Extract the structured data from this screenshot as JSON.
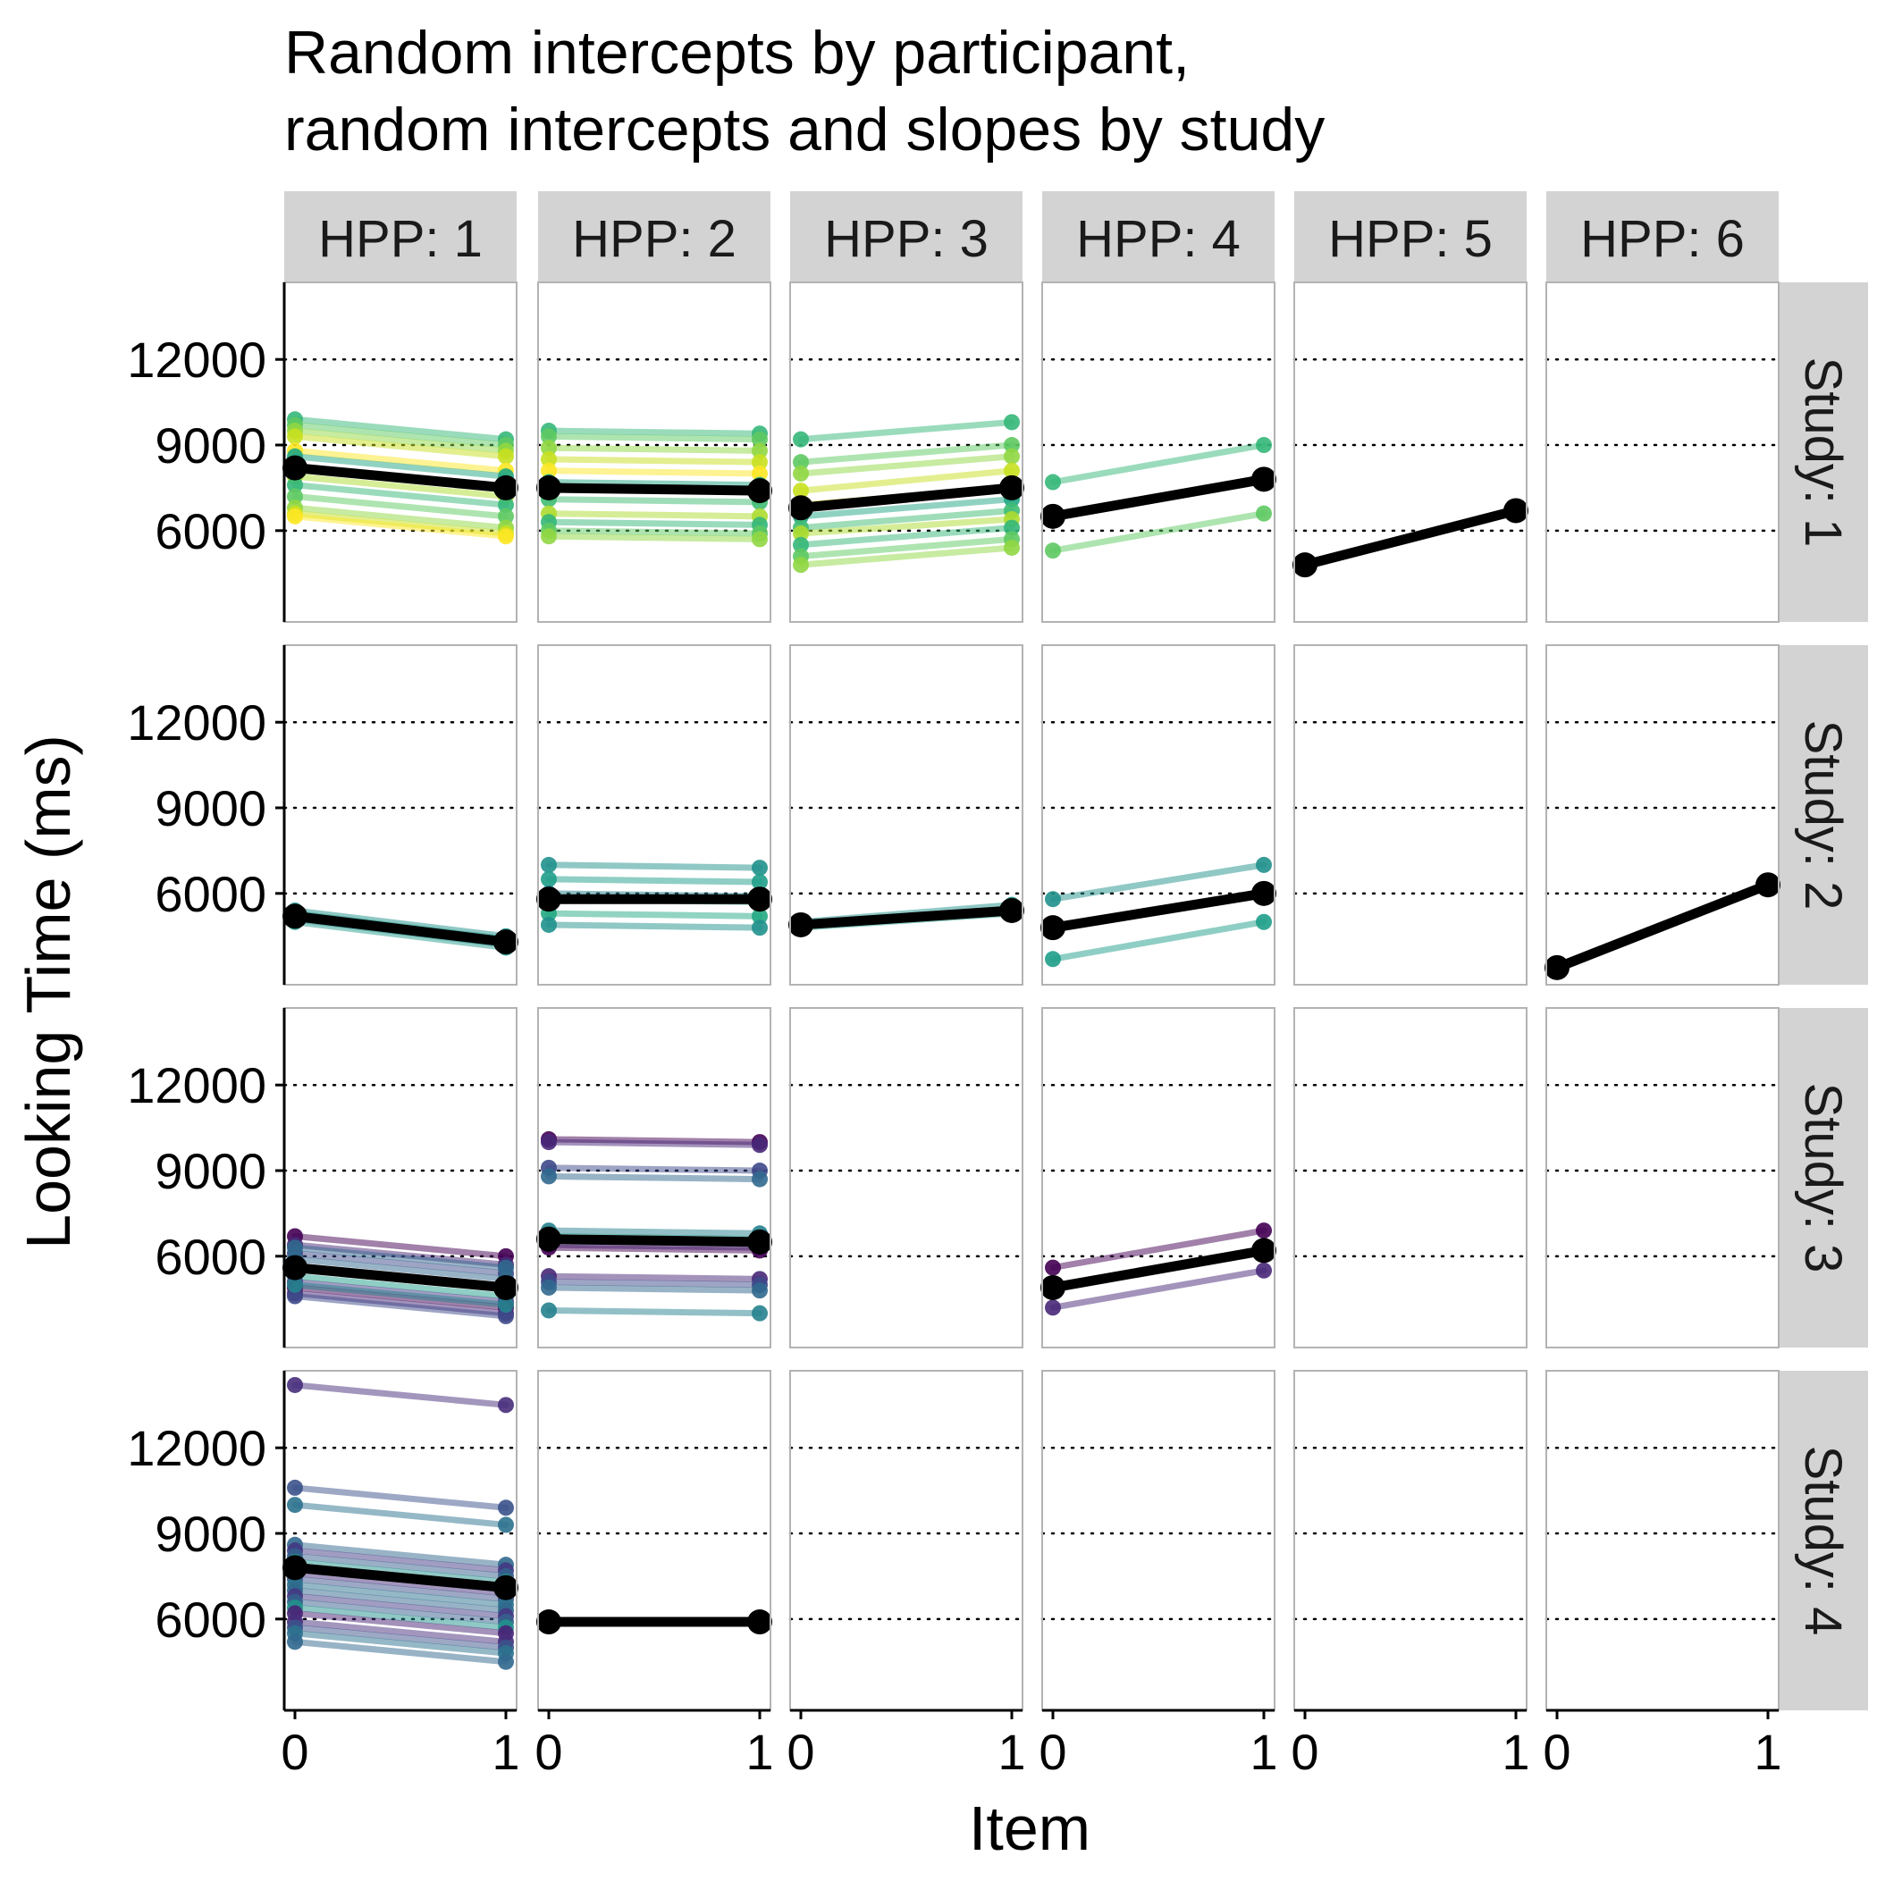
{
  "chart_data": {
    "type": "line",
    "title": "Random intercepts by participant,\nrandom intercepts and slopes by study",
    "title_lines": [
      "Random intercepts by participant,",
      "random intercepts and slopes by study"
    ],
    "xlabel": "Item",
    "ylabel": "Looking Time (ms)",
    "xlim": [
      0,
      1
    ],
    "ylim": [
      2800,
      14700
    ],
    "x_ticks": [
      0,
      1
    ],
    "x_tick_labels": [
      "0",
      "1"
    ],
    "y_ticks": [
      6000,
      9000,
      12000
    ],
    "y_tick_labels": [
      "6000",
      "9000",
      "12000"
    ],
    "gridlines": "dotted horizontal at y ticks",
    "legend": "none",
    "col_facets": [
      "HPP: 1",
      "HPP: 2",
      "HPP: 3",
      "HPP: 4",
      "HPP: 5",
      "HPP: 6"
    ],
    "row_facets": [
      "Study: 1",
      "Study: 2",
      "Study: 3",
      "Study: 4"
    ],
    "colors": {
      "study1": [
        "#35b779",
        "#5ec962",
        "#90d743",
        "#c8e020",
        "#fde725",
        "#21a685",
        "#3fbc73",
        "#addc30"
      ],
      "study2": [
        "#21918c",
        "#1f9e89",
        "#26828e",
        "#2a9d8f",
        "#23a983"
      ],
      "study3": [
        "#440154",
        "#482878",
        "#3e4989",
        "#31688e",
        "#26828e",
        "#1f9e89",
        "#443983"
      ],
      "study4": [
        "#472d7b",
        "#3b528b",
        "#2c728e",
        "#31688e",
        "#443983",
        "#35608d",
        "#21918c",
        "#482475"
      ],
      "fixed_effect": "#000000",
      "strip_fill": "#d3d3d3",
      "panel_border": "#b3b3b3"
    },
    "panels": [
      {
        "row": 0,
        "col": 0,
        "fixed": [
          8200,
          7500
        ],
        "participants": [
          [
            9900,
            9200
          ],
          [
            9700,
            9000
          ],
          [
            9500,
            8800
          ],
          [
            9300,
            8600
          ],
          [
            8800,
            8100
          ],
          [
            8600,
            7900
          ],
          [
            8200,
            7500
          ],
          [
            7900,
            7200
          ],
          [
            7600,
            6900
          ],
          [
            7200,
            6500
          ],
          [
            6800,
            6100
          ],
          [
            6600,
            5900
          ],
          [
            6500,
            5800
          ]
        ]
      },
      {
        "row": 0,
        "col": 1,
        "fixed": [
          7500,
          7400
        ],
        "participants": [
          [
            9500,
            9400
          ],
          [
            9300,
            9200
          ],
          [
            8900,
            8800
          ],
          [
            8500,
            8400
          ],
          [
            8100,
            8000
          ],
          [
            7700,
            7600
          ],
          [
            7100,
            7000
          ],
          [
            6600,
            6500
          ],
          [
            6300,
            6200
          ],
          [
            6000,
            5900
          ],
          [
            5800,
            5700
          ]
        ]
      },
      {
        "row": 0,
        "col": 2,
        "fixed": [
          6800,
          7500
        ],
        "participants": [
          [
            9200,
            9800
          ],
          [
            8400,
            9000
          ],
          [
            8000,
            8600
          ],
          [
            7400,
            8100
          ],
          [
            6900,
            7500
          ],
          [
            6500,
            7100
          ],
          [
            6100,
            6700
          ],
          [
            5900,
            6400
          ],
          [
            5500,
            6100
          ],
          [
            5100,
            5700
          ],
          [
            4800,
            5400
          ]
        ]
      },
      {
        "row": 0,
        "col": 3,
        "fixed": [
          6500,
          7800
        ],
        "participants": [
          [
            7700,
            9000
          ],
          [
            5300,
            6600
          ]
        ]
      },
      {
        "row": 0,
        "col": 4,
        "fixed": [
          4800,
          6700
        ],
        "participants": []
      },
      {
        "row": 0,
        "col": 5,
        "fixed": null,
        "participants": []
      },
      {
        "row": 1,
        "col": 0,
        "fixed": [
          5200,
          4300
        ],
        "participants": [
          [
            5400,
            4500
          ],
          [
            5300,
            4400
          ],
          [
            5100,
            4200
          ],
          [
            5000,
            4100
          ]
        ]
      },
      {
        "row": 1,
        "col": 1,
        "fixed": [
          5800,
          5800
        ],
        "participants": [
          [
            7000,
            6900
          ],
          [
            6500,
            6400
          ],
          [
            6000,
            5900
          ],
          [
            5800,
            5700
          ],
          [
            5300,
            5200
          ],
          [
            4900,
            4800
          ]
        ]
      },
      {
        "row": 1,
        "col": 2,
        "fixed": [
          4900,
          5400
        ],
        "participants": [
          [
            5000,
            5600
          ],
          [
            4800,
            5300
          ]
        ]
      },
      {
        "row": 1,
        "col": 3,
        "fixed": [
          4800,
          6000
        ],
        "participants": [
          [
            5800,
            7000
          ],
          [
            3700,
            5000
          ]
        ]
      },
      {
        "row": 1,
        "col": 4,
        "fixed": null,
        "participants": []
      },
      {
        "row": 1,
        "col": 5,
        "fixed": [
          3400,
          6300
        ],
        "participants": []
      },
      {
        "row": 2,
        "col": 0,
        "fixed": [
          5600,
          4900
        ],
        "participants": [
          [
            6700,
            6000
          ],
          [
            6400,
            5700
          ],
          [
            6100,
            5400
          ],
          [
            5900,
            5200
          ],
          [
            5600,
            4900
          ],
          [
            5300,
            4600
          ],
          [
            5100,
            4400
          ],
          [
            4900,
            4200
          ],
          [
            4700,
            4000
          ],
          [
            4600,
            3900
          ],
          [
            6300,
            5600
          ],
          [
            5000,
            4300
          ]
        ]
      },
      {
        "row": 2,
        "col": 1,
        "fixed": [
          6600,
          6500
        ],
        "participants": [
          [
            10100,
            10000
          ],
          [
            10000,
            9900
          ],
          [
            9100,
            9000
          ],
          [
            8800,
            8700
          ],
          [
            6900,
            6800
          ],
          [
            6700,
            6600
          ],
          [
            6400,
            6300
          ],
          [
            6300,
            6200
          ],
          [
            5300,
            5200
          ],
          [
            5100,
            5000
          ],
          [
            4900,
            4800
          ],
          [
            4100,
            4000
          ]
        ]
      },
      {
        "row": 2,
        "col": 2,
        "fixed": null,
        "participants": []
      },
      {
        "row": 2,
        "col": 3,
        "fixed": [
          4900,
          6200
        ],
        "participants": [
          [
            5600,
            6900
          ],
          [
            4200,
            5500
          ]
        ]
      },
      {
        "row": 2,
        "col": 4,
        "fixed": null,
        "participants": []
      },
      {
        "row": 2,
        "col": 5,
        "fixed": null,
        "participants": []
      },
      {
        "row": 3,
        "col": 0,
        "fixed": [
          7800,
          7100
        ],
        "participants": [
          [
            14200,
            13500
          ],
          [
            10600,
            9900
          ],
          [
            10000,
            9300
          ],
          [
            8600,
            7900
          ],
          [
            8400,
            7700
          ],
          [
            8200,
            7500
          ],
          [
            8000,
            7300
          ],
          [
            7800,
            7100
          ],
          [
            7600,
            6900
          ],
          [
            7400,
            6700
          ],
          [
            7200,
            6500
          ],
          [
            7000,
            6300
          ],
          [
            6800,
            6100
          ],
          [
            6600,
            5900
          ],
          [
            6400,
            5700
          ],
          [
            6200,
            5500
          ],
          [
            5900,
            5200
          ],
          [
            5700,
            5000
          ],
          [
            5500,
            4800
          ],
          [
            5200,
            4500
          ]
        ]
      },
      {
        "row": 3,
        "col": 1,
        "fixed": [
          5900,
          5900
        ],
        "participants": []
      },
      {
        "row": 3,
        "col": 2,
        "fixed": null,
        "participants": []
      },
      {
        "row": 3,
        "col": 3,
        "fixed": null,
        "participants": []
      },
      {
        "row": 3,
        "col": 4,
        "fixed": null,
        "participants": []
      },
      {
        "row": 3,
        "col": 5,
        "fixed": null,
        "participants": []
      }
    ]
  }
}
